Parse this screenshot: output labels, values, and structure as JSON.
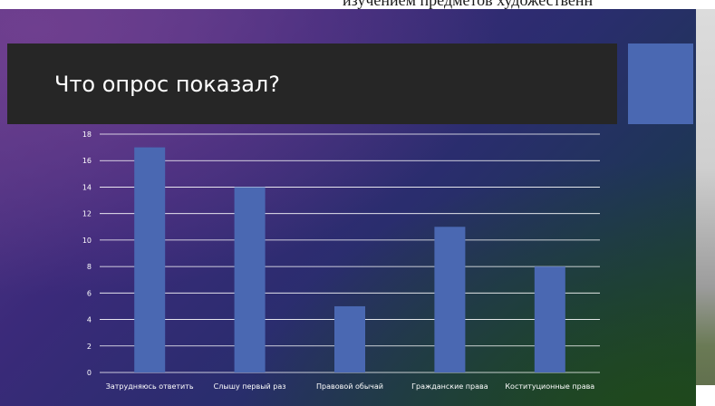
{
  "page": {
    "overflow_text": "изучением предметов художественн"
  },
  "slide": {
    "title": "Что опрос показал?"
  },
  "colors": {
    "title_band": "#262626",
    "accent_square": "#4a68b2",
    "bar": "#4a68b2",
    "gridline": "#ffffff",
    "text": "#ffffff"
  },
  "chart_data": {
    "type": "bar",
    "categories": [
      "Затрудняюсь ответить",
      "Слышу первый раз",
      "Правовой обычай",
      "Гражданские права",
      "Коституционные права"
    ],
    "values": [
      17,
      14,
      5,
      11,
      8
    ],
    "ylim": [
      0,
      18
    ],
    "yticks": [
      0,
      2,
      4,
      6,
      8,
      10,
      12,
      14,
      16,
      18
    ],
    "grid": true,
    "legend": "none"
  }
}
